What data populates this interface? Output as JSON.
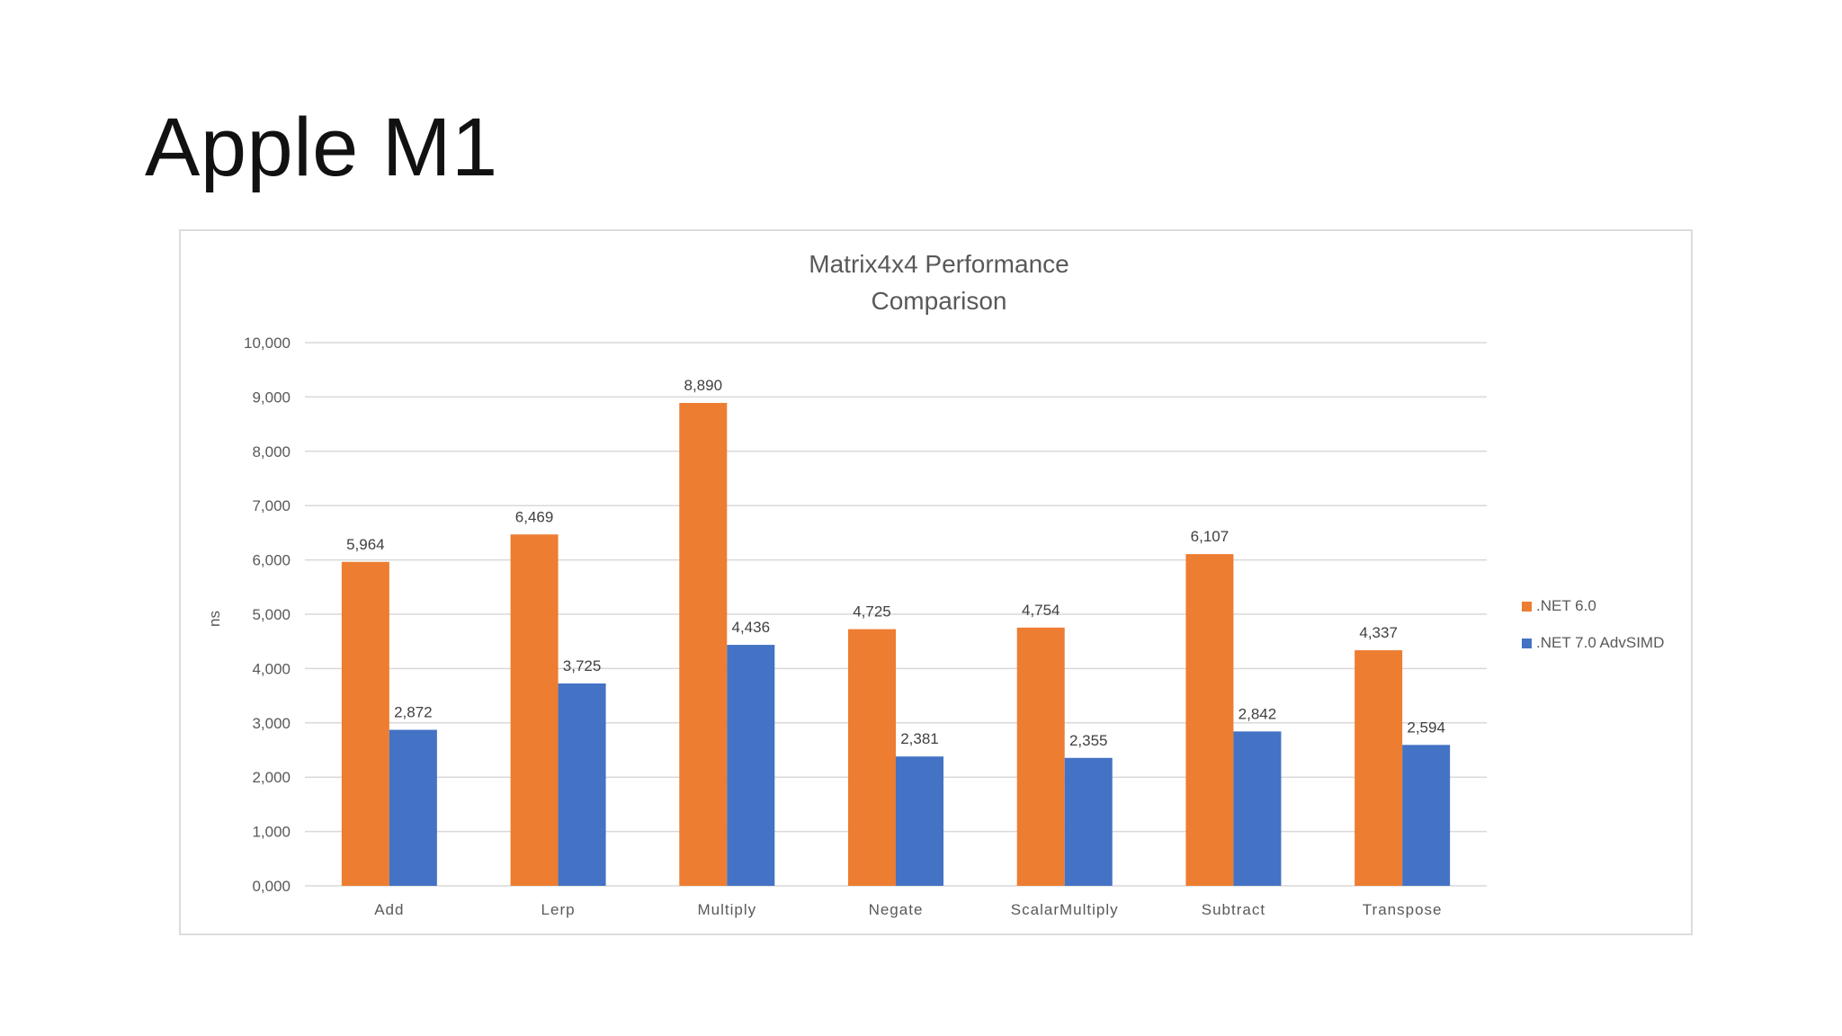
{
  "slide": {
    "title": "Apple M1"
  },
  "chart_data": {
    "type": "bar",
    "title_lines": [
      "Matrix4x4 Performance",
      "Comparison"
    ],
    "xlabel": "",
    "ylabel": "ns",
    "ylim": [
      0,
      10000
    ],
    "y_ticks": [
      0,
      1000,
      2000,
      3000,
      4000,
      5000,
      6000,
      7000,
      8000,
      9000,
      10000
    ],
    "y_tick_labels": [
      "0,000",
      "1,000",
      "2,000",
      "3,000",
      "4,000",
      "5,000",
      "6,000",
      "7,000",
      "8,000",
      "9,000",
      "10,000"
    ],
    "grid": true,
    "legend_position": "right",
    "categories": [
      "Add",
      "Lerp",
      "Multiply",
      "Negate",
      "ScalarMultiply",
      "Subtract",
      "Transpose"
    ],
    "series": [
      {
        "name": ".NET 6.0",
        "color": "#ED7D31",
        "values": [
          5964,
          6469,
          8890,
          4725,
          4754,
          6107,
          4337
        ],
        "labels": [
          "5,964",
          "6,469",
          "8,890",
          "4,725",
          "4,754",
          "6,107",
          "4,337"
        ]
      },
      {
        "name": ".NET 7.0 AdvSIMD",
        "color": "#4472C4",
        "values": [
          2872,
          3725,
          4436,
          2381,
          2355,
          2842,
          2594
        ],
        "labels": [
          "2,872",
          "3,725",
          "4,436",
          "2,381",
          "2,355",
          "2,842",
          "2,594"
        ]
      }
    ],
    "colors": {
      "grid": "#d9d9d9",
      "text": "#595959"
    }
  }
}
